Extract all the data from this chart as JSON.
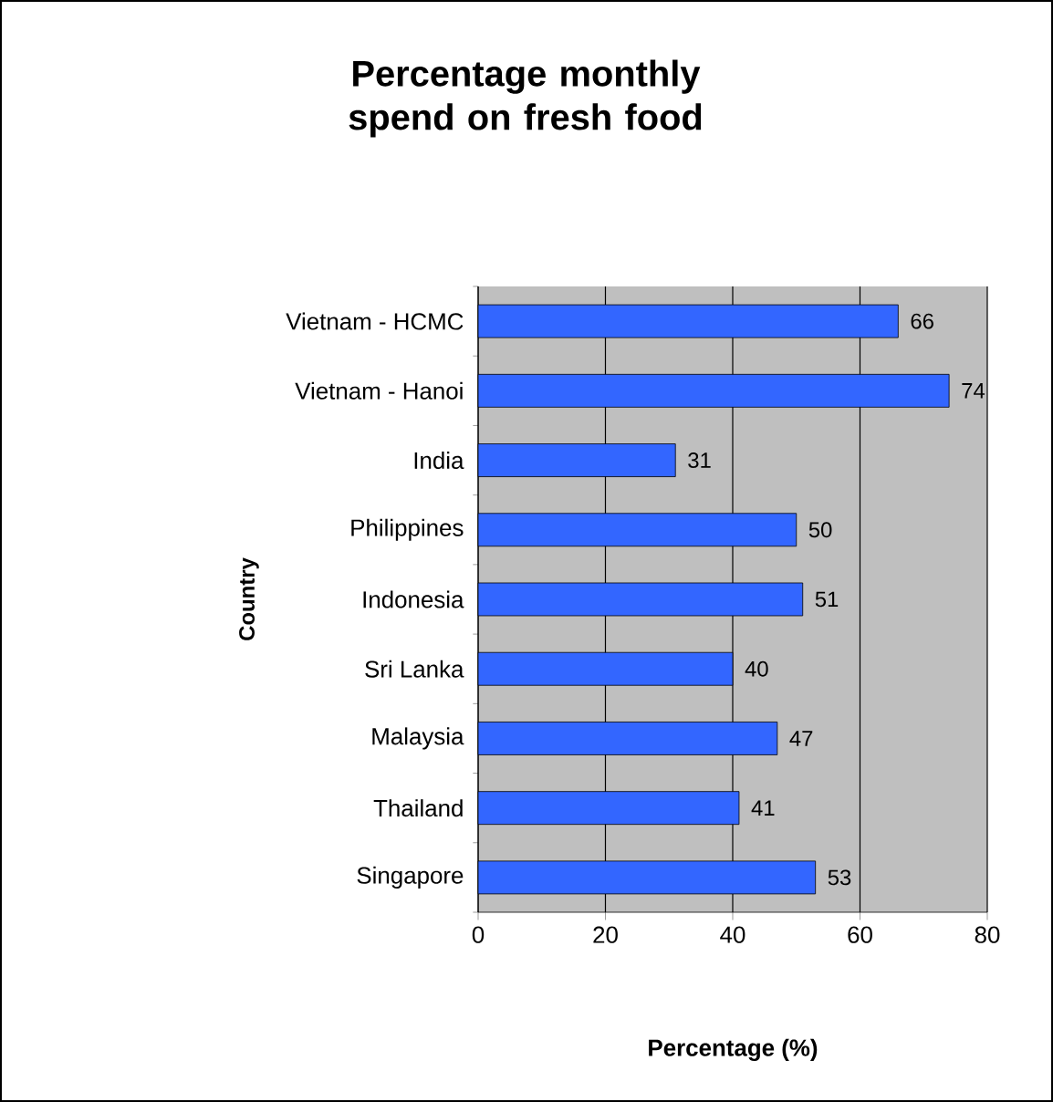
{
  "chart_data": {
    "type": "bar",
    "orientation": "horizontal",
    "title": "Percentage monthly spend on fresh food",
    "xlabel": "Percentage (%)",
    "ylabel": "Country",
    "categories": [
      "Vietnam - HCMC",
      "Vietnam - Hanoi",
      "India",
      "Philippines",
      "Indonesia",
      "Sri Lanka",
      "Malaysia",
      "Thailand",
      "Singapore"
    ],
    "values": [
      66,
      74,
      31,
      50,
      51,
      40,
      47,
      41,
      53
    ],
    "color": "#3366ff",
    "xlim": [
      0,
      80
    ],
    "xticks": [
      0,
      20,
      40,
      60,
      80
    ],
    "grid": "x",
    "data_labels": true
  }
}
